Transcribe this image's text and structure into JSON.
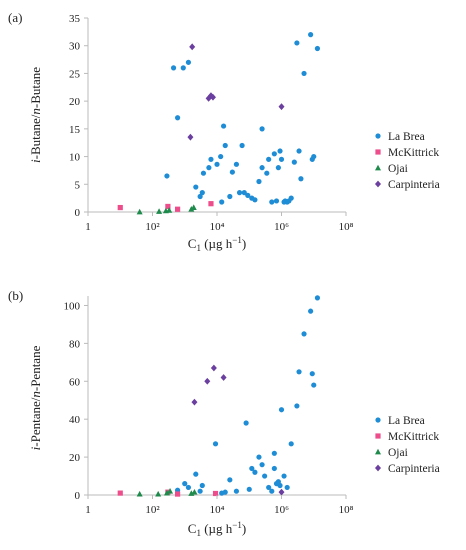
{
  "chart_data": [
    {
      "type": "scatter",
      "panel_label": "(a)",
      "ylabel": "i-Butane/n-Butane",
      "xlabel": "C1 (µg h−1)",
      "x_scale": "log",
      "xlim": [
        1,
        100000000
      ],
      "x_ticks": [
        1,
        100,
        10000,
        1000000,
        100000000
      ],
      "x_tick_labels": [
        "1",
        "10²",
        "10⁴",
        "10⁶",
        "10⁸"
      ],
      "ylim": [
        0,
        35
      ],
      "y_ticks": [
        0,
        5,
        10,
        15,
        20,
        25,
        30,
        35
      ],
      "y_tick_labels": [
        "0",
        "5",
        "10",
        "15",
        "20",
        "25",
        "30",
        "35"
      ],
      "grid": false,
      "legend": "right",
      "series": [
        {
          "name": "La Brea",
          "marker": "circle",
          "color": "#1f8dd6",
          "points": [
            [
              280,
              6.5
            ],
            [
              450,
              26
            ],
            [
              900,
              26
            ],
            [
              1300,
              27
            ],
            [
              3000,
              2.8
            ],
            [
              3500,
              3.5
            ],
            [
              2200,
              4.5
            ],
            [
              3800,
              7
            ],
            [
              5600,
              8
            ],
            [
              6500,
              9.5
            ],
            [
              10000,
              8.6
            ],
            [
              13000,
              10
            ],
            [
              14000,
              1.8
            ],
            [
              18000,
              12
            ],
            [
              25000,
              2.8
            ],
            [
              30000,
              7.2
            ],
            [
              40000,
              8.6
            ],
            [
              50000,
              3.5
            ],
            [
              70000,
              3.5
            ],
            [
              90000,
              3
            ],
            [
              120000,
              2.5
            ],
            [
              150000,
              2.2
            ],
            [
              200000,
              5.5
            ],
            [
              250000,
              8
            ],
            [
              350000,
              7
            ],
            [
              400000,
              9.5
            ],
            [
              500000,
              1.8
            ],
            [
              600000,
              10.5
            ],
            [
              700000,
              2
            ],
            [
              800000,
              8
            ],
            [
              900000,
              11
            ],
            [
              1000000,
              9.5
            ],
            [
              1200000,
              1.8
            ],
            [
              1300000,
              2
            ],
            [
              1500000,
              1.8
            ],
            [
              1700000,
              2
            ],
            [
              2000000,
              2.5
            ],
            [
              2500000,
              9
            ],
            [
              3000000,
              30.5
            ],
            [
              3500000,
              11
            ],
            [
              4000000,
              6
            ],
            [
              5000000,
              25
            ],
            [
              8000000,
              32
            ],
            [
              9000000,
              9.5
            ],
            [
              10000000,
              10
            ],
            [
              13000000,
              29.5
            ],
            [
              600,
              17
            ],
            [
              16000,
              15.5
            ],
            [
              60000,
              12
            ],
            [
              250000,
              15
            ]
          ]
        },
        {
          "name": "McKittrick",
          "marker": "square",
          "color": "#ee4d8c",
          "points": [
            [
              10,
              0.8
            ],
            [
              300,
              1
            ],
            [
              600,
              0.5
            ],
            [
              6500,
              1.5
            ]
          ]
        },
        {
          "name": "Ojai",
          "marker": "triangle",
          "color": "#1e8a4c",
          "points": [
            [
              40,
              0
            ],
            [
              160,
              0.1
            ],
            [
              260,
              0.2
            ],
            [
              330,
              0.3
            ],
            [
              1600,
              0.5
            ],
            [
              1900,
              0.8
            ]
          ]
        },
        {
          "name": "Carpinteria",
          "marker": "diamond",
          "color": "#6b3fa0",
          "points": [
            [
              1500,
              13.5
            ],
            [
              1700,
              29.8
            ],
            [
              5500,
              20.5
            ],
            [
              6500,
              21
            ],
            [
              7500,
              20.7
            ],
            [
              1000000,
              19
            ]
          ]
        }
      ]
    },
    {
      "type": "scatter",
      "panel_label": "(b)",
      "ylabel": "i-Pentane/n-Pentane",
      "xlabel": "C1 (µg h−1)",
      "x_scale": "log",
      "xlim": [
        1,
        100000000
      ],
      "x_ticks": [
        1,
        100,
        10000,
        1000000,
        100000000
      ],
      "x_tick_labels": [
        "1",
        "10²",
        "10⁴",
        "10⁶",
        "10⁸"
      ],
      "ylim": [
        0,
        105
      ],
      "y_ticks": [
        0,
        20,
        40,
        60,
        80,
        100
      ],
      "y_tick_labels": [
        "0",
        "20",
        "40",
        "60",
        "80",
        "100"
      ],
      "grid": false,
      "legend": "right",
      "series": [
        {
          "name": "La Brea",
          "marker": "circle",
          "color": "#1f8dd6",
          "points": [
            [
              600,
              2.5
            ],
            [
              1000,
              6
            ],
            [
              1300,
              4
            ],
            [
              2200,
              11
            ],
            [
              3000,
              2
            ],
            [
              3500,
              5
            ],
            [
              9000,
              27
            ],
            [
              14000,
              1
            ],
            [
              18000,
              1.5
            ],
            [
              40000,
              2
            ],
            [
              80000,
              38
            ],
            [
              100000,
              3
            ],
            [
              120000,
              14
            ],
            [
              150000,
              12
            ],
            [
              200000,
              20
            ],
            [
              250000,
              16
            ],
            [
              300000,
              10
            ],
            [
              400000,
              4
            ],
            [
              500000,
              2
            ],
            [
              600000,
              22
            ],
            [
              700000,
              6
            ],
            [
              800000,
              7
            ],
            [
              900000,
              5
            ],
            [
              1000000,
              45
            ],
            [
              1200000,
              10
            ],
            [
              1500000,
              4
            ],
            [
              2000000,
              27
            ],
            [
              3000000,
              47
            ],
            [
              3500000,
              65
            ],
            [
              5000000,
              85
            ],
            [
              8000000,
              97
            ],
            [
              9000000,
              64
            ],
            [
              10000000,
              58
            ],
            [
              13000000,
              104
            ],
            [
              25000,
              8
            ],
            [
              600000,
              14
            ]
          ]
        },
        {
          "name": "McKittrick",
          "marker": "square",
          "color": "#ee4d8c",
          "points": [
            [
              10,
              1
            ],
            [
              300,
              1.5
            ],
            [
              600,
              0.5
            ],
            [
              9000,
              0.8
            ]
          ]
        },
        {
          "name": "Ojai",
          "marker": "triangle",
          "color": "#1e8a4c",
          "points": [
            [
              40,
              0.5
            ],
            [
              150,
              0.5
            ],
            [
              280,
              1
            ],
            [
              350,
              2
            ],
            [
              1600,
              0.8
            ],
            [
              2000,
              1.5
            ]
          ]
        },
        {
          "name": "Carpinteria",
          "marker": "diamond",
          "color": "#6b3fa0",
          "points": [
            [
              2000,
              49
            ],
            [
              5000,
              60
            ],
            [
              8000,
              67
            ],
            [
              16000,
              62
            ],
            [
              1000000,
              1.5
            ]
          ]
        }
      ]
    }
  ]
}
